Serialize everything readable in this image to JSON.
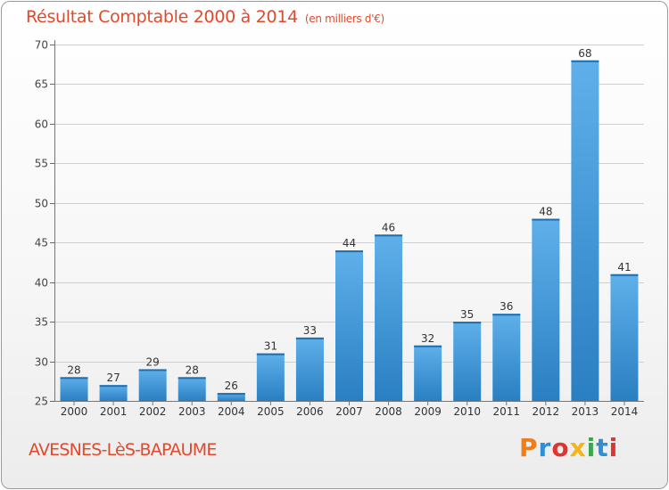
{
  "header": {
    "title": "Résultat Comptable 2000 à 2014",
    "unit": "(en milliers d'€)"
  },
  "footer": {
    "city": "AVESNES-LèS-BAPAUME",
    "logo": "Proxiti"
  },
  "colors": {
    "title": "#e04a2c",
    "bar_light": "#5fb0ea",
    "bar_dark": "#2a7fc2",
    "grid": "#cfcfcf",
    "logo_letters": [
      "#f07d1a",
      "#2f8fd6",
      "#e0342f",
      "#f3b51c",
      "#3aa84a",
      "#2f8fd6",
      "#e0342f"
    ]
  },
  "chart_data": {
    "type": "bar",
    "title": "Résultat Comptable 2000 à 2014",
    "subtitle": "(en milliers d'€)",
    "xlabel": "",
    "ylabel": "",
    "categories": [
      "2000",
      "2001",
      "2002",
      "2003",
      "2004",
      "2005",
      "2006",
      "2007",
      "2008",
      "2009",
      "2010",
      "2011",
      "2012",
      "2013",
      "2014"
    ],
    "values": [
      28,
      27,
      29,
      28,
      26,
      31,
      33,
      44,
      46,
      32,
      35,
      36,
      48,
      68,
      41
    ],
    "ylim": [
      25,
      70
    ],
    "yticks": [
      25,
      30,
      35,
      40,
      45,
      50,
      55,
      60,
      65,
      70
    ],
    "grid": true,
    "data_labels": true
  }
}
